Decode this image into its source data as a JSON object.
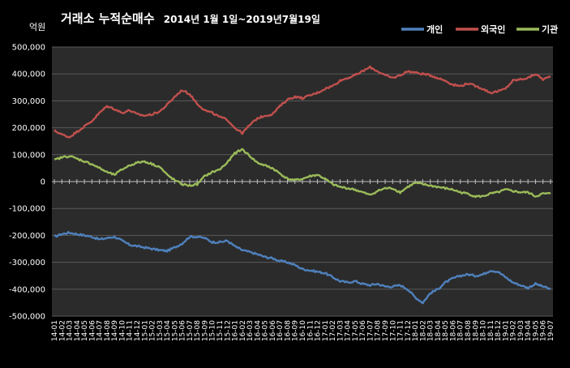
{
  "chart_data": {
    "type": "line",
    "title": "거래소  누적순매수",
    "subtitle": "2014년 1월 1일~2019년7월19일",
    "ylabel": "억원",
    "ylim": [
      -500000,
      500000
    ],
    "yticks": [
      500000,
      400000,
      300000,
      200000,
      100000,
      0,
      -100000,
      -200000,
      -300000,
      -400000,
      -500000
    ],
    "ytick_labels": [
      "500,000",
      "400,000",
      "300,000",
      "200,000",
      "100,000",
      "0",
      "-100,000",
      "-200,000",
      "-300,000",
      "-400,000",
      "-500,000"
    ],
    "grid": true,
    "legend": "top-right",
    "x": [
      "14-01",
      "14-02",
      "14-03",
      "14-04",
      "14-05",
      "14-06",
      "14-07",
      "14-08",
      "14-09",
      "14-10",
      "14-11",
      "14-12",
      "15-01",
      "15-02",
      "15-03",
      "15-04",
      "15-05",
      "15-06",
      "15-07",
      "15-08",
      "15-09",
      "15-10",
      "15-11",
      "15-12",
      "16-01",
      "16-02",
      "16-03",
      "16-04",
      "16-05",
      "16-06",
      "16-07",
      "16-08",
      "16-09",
      "16-10",
      "16-11",
      "16-12",
      "17-01",
      "17-02",
      "17-03",
      "17-04",
      "17-05",
      "17-06",
      "17-07",
      "17-08",
      "17-09",
      "17-10",
      "17-11",
      "17-12",
      "18-01",
      "18-02",
      "18-03",
      "18-04",
      "18-05",
      "18-06",
      "18-07",
      "18-08",
      "18-09",
      "18-10",
      "18-11",
      "18-12",
      "19-01",
      "19-02",
      "19-03",
      "19-04",
      "19-05",
      "19-06",
      "19-07"
    ],
    "series": [
      {
        "name": "개인",
        "color": "#4f81bd",
        "values": [
          -205000,
          -195000,
          -190000,
          -195000,
          -200000,
          -205000,
          -215000,
          -210000,
          -205000,
          -220000,
          -235000,
          -240000,
          -245000,
          -250000,
          -255000,
          -258000,
          -245000,
          -230000,
          -205000,
          -205000,
          -210000,
          -225000,
          -225000,
          -220000,
          -240000,
          -255000,
          -262000,
          -270000,
          -280000,
          -285000,
          -295000,
          -300000,
          -310000,
          -325000,
          -330000,
          -335000,
          -340000,
          -355000,
          -370000,
          -375000,
          -370000,
          -380000,
          -385000,
          -380000,
          -390000,
          -390000,
          -385000,
          -400000,
          -430000,
          -450000,
          -415000,
          -400000,
          -375000,
          -360000,
          -350000,
          -345000,
          -350000,
          -345000,
          -330000,
          -335000,
          -355000,
          -375000,
          -385000,
          -395000,
          -380000,
          -390000,
          -400000
        ]
      },
      {
        "name": "외국인",
        "color": "#c0504d",
        "values": [
          190000,
          175000,
          165000,
          185000,
          205000,
          225000,
          255000,
          280000,
          270000,
          255000,
          265000,
          250000,
          245000,
          250000,
          260000,
          285000,
          315000,
          340000,
          325000,
          290000,
          265000,
          255000,
          240000,
          230000,
          200000,
          180000,
          210000,
          235000,
          245000,
          250000,
          280000,
          305000,
          315000,
          310000,
          320000,
          330000,
          345000,
          355000,
          375000,
          385000,
          395000,
          410000,
          425000,
          410000,
          395000,
          385000,
          395000,
          410000,
          405000,
          400000,
          395000,
          385000,
          375000,
          360000,
          355000,
          365000,
          355000,
          345000,
          330000,
          335000,
          345000,
          375000,
          380000,
          385000,
          400000,
          380000,
          390000
        ]
      },
      {
        "name": "기관",
        "color": "#9bbb59",
        "values": [
          80000,
          90000,
          95000,
          85000,
          75000,
          65000,
          50000,
          35000,
          25000,
          45000,
          60000,
          70000,
          75000,
          65000,
          55000,
          25000,
          5000,
          -10000,
          -15000,
          -10000,
          20000,
          35000,
          45000,
          70000,
          105000,
          120000,
          95000,
          70000,
          60000,
          50000,
          30000,
          10000,
          5000,
          10000,
          20000,
          25000,
          10000,
          -10000,
          -20000,
          -25000,
          -30000,
          -40000,
          -50000,
          -35000,
          -25000,
          -25000,
          -40000,
          -20000,
          -5000,
          -10000,
          -15000,
          -20000,
          -25000,
          -30000,
          -40000,
          -45000,
          -55000,
          -55000,
          -45000,
          -40000,
          -30000,
          -35000,
          -40000,
          -40000,
          -55000,
          -45000,
          -45000
        ]
      }
    ]
  }
}
